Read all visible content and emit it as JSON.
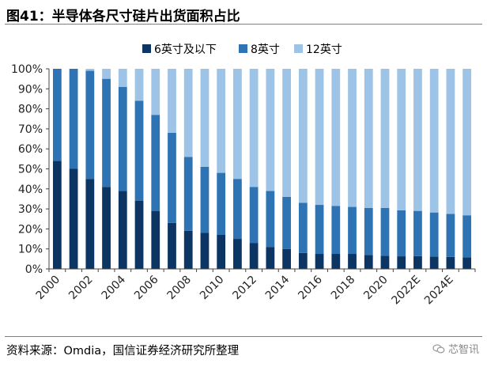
{
  "figure": {
    "title": "图41：半导体各尺寸硅片出货面积占比",
    "source": "资料来源：Omdia，国信证券经济研究所整理",
    "watermark": "芯智讯"
  },
  "colors": {
    "s6": "#0d3563",
    "s8": "#2e74b5",
    "s12": "#9dc3e6"
  },
  "chart_data": {
    "type": "bar",
    "stacked": true,
    "categories": [
      "2000",
      "2001",
      "2002",
      "2003",
      "2004",
      "2005",
      "2006",
      "2007",
      "2008",
      "2009",
      "2010",
      "2011",
      "2012",
      "2013",
      "2014",
      "2015",
      "2016",
      "2017",
      "2018",
      "2019",
      "2020",
      "2021",
      "2022E",
      "2023E",
      "2024E",
      "2025E"
    ],
    "tick_labels": [
      "2000",
      "",
      "2002",
      "",
      "2004",
      "",
      "2006",
      "",
      "2008",
      "",
      "2010",
      "",
      "2012",
      "",
      "2014",
      "",
      "2016",
      "",
      "2018",
      "",
      "2020",
      "",
      "2022E",
      "",
      "2024E",
      ""
    ],
    "series": [
      {
        "name": "6英寸及以下",
        "values": [
          54,
          50,
          45,
          41,
          39,
          34,
          29,
          23,
          19,
          18,
          17,
          15,
          13,
          11,
          10,
          8,
          7.5,
          7.5,
          7.5,
          7,
          6.5,
          6.3,
          6.4,
          6.2,
          6,
          5.8
        ]
      },
      {
        "name": "8英寸",
        "values": [
          46,
          50,
          54,
          54,
          52,
          50,
          48,
          45,
          37,
          33,
          31,
          30,
          28,
          28,
          26,
          25,
          24.5,
          24,
          23.5,
          23.5,
          24,
          23,
          22.6,
          22,
          21.5,
          21
        ]
      },
      {
        "name": "12英寸",
        "values": [
          0,
          0,
          1,
          5,
          9,
          16,
          23,
          32,
          44,
          49,
          52,
          55,
          59,
          61,
          64,
          67,
          68,
          68.5,
          69,
          69.5,
          69.5,
          70.7,
          71,
          71.8,
          72.5,
          73.2
        ]
      }
    ],
    "ylim": [
      0,
      100
    ],
    "y_ticks": [
      "0%",
      "10%",
      "20%",
      "30%",
      "40%",
      "50%",
      "60%",
      "70%",
      "80%",
      "90%",
      "100%"
    ],
    "legend_position": "top"
  }
}
